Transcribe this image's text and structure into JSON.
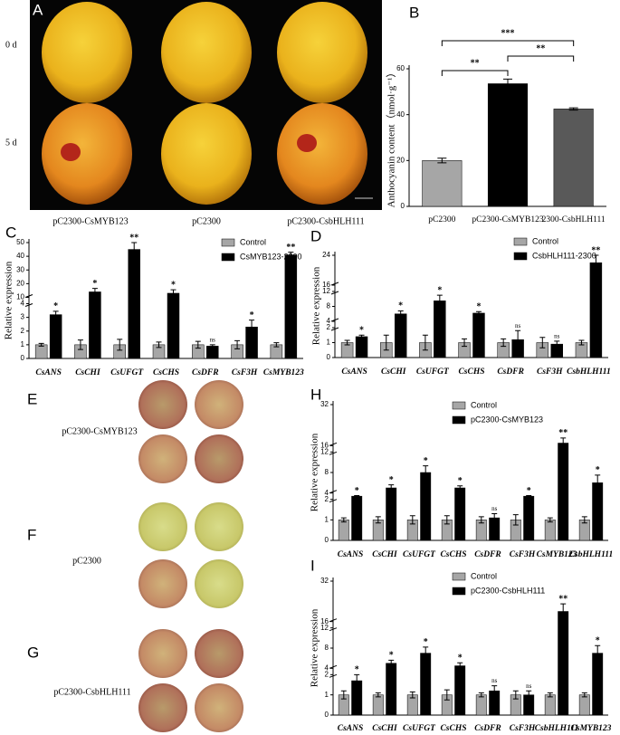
{
  "photos": {
    "panel_a": {
      "letter": "A",
      "rows": [
        "0 d",
        "5 d"
      ],
      "captions": [
        "pC2300-CsMYB123",
        "pC2300",
        "pC2300-CsbHLH111"
      ]
    },
    "leaf_panels": [
      {
        "letter": "E",
        "label": "pC2300-CsMYB123"
      },
      {
        "letter": "F",
        "label": "pC2300"
      },
      {
        "letter": "G",
        "label": "pC2300-CsbHLH111"
      }
    ]
  },
  "chart_data": [
    {
      "panel": "B",
      "type": "bar",
      "y_label": "Anthocyanin content（nmol·g⁻¹）",
      "categories": [
        "pC2300",
        "pC2300-CsMYB123",
        "2300-CsbHLH111"
      ],
      "values": [
        20,
        53.5,
        42.5
      ],
      "errors": [
        1,
        2,
        0.5
      ],
      "colors": [
        "#a6a6a6",
        "#000000",
        "#595959"
      ],
      "ylim": [
        0,
        60
      ],
      "yticks": [
        0,
        20,
        40,
        60
      ],
      "brackets": [
        {
          "from": 0,
          "to": 1,
          "label": "**"
        },
        {
          "from": 1,
          "to": 2,
          "label": "**"
        },
        {
          "from": 0,
          "to": 2,
          "label": "***"
        }
      ]
    },
    {
      "panel": "C",
      "type": "grouped_bar",
      "y_label": "Relative expression",
      "categories": [
        "CsANS",
        "CsCHI",
        "CsUFGT",
        "CsCHS",
        "CsDFR",
        "CsF3H",
        "CsMYB123"
      ],
      "ylim_segments": [
        [
          0,
          4
        ],
        [
          10,
          50
        ]
      ],
      "yticks": [
        0,
        1,
        2,
        3,
        4,
        10,
        20,
        30,
        40,
        50
      ],
      "series": [
        {
          "name": "Control",
          "color": "#a6a6a6",
          "values": [
            1,
            1,
            1,
            1,
            1,
            1,
            1
          ],
          "errors": [
            0.1,
            0.35,
            0.4,
            0.2,
            0.25,
            0.3,
            0.15
          ]
        },
        {
          "name": "CsMYB123-2300",
          "color": "#000000",
          "values": [
            3.2,
            14,
            45,
            13,
            0.9,
            2.3,
            41
          ],
          "errors": [
            0.25,
            2.5,
            5,
            2.5,
            0.1,
            0.5,
            2
          ],
          "significance": [
            "*",
            "*",
            "**",
            "*",
            "ns",
            "*",
            "**"
          ]
        }
      ]
    },
    {
      "panel": "D",
      "type": "grouped_bar",
      "y_label": "Relative expression",
      "categories": [
        "CsANS",
        "CsCHI",
        "CsUFGT",
        "CsCHS",
        "CsDFR",
        "CsF3H",
        "CsbHLH111"
      ],
      "ylim_segments": [
        [
          0,
          2
        ],
        [
          4,
          12
        ],
        [
          16,
          24
        ]
      ],
      "yticks": [
        0,
        1,
        2,
        4,
        8,
        12,
        16,
        24
      ],
      "series": [
        {
          "name": "Control",
          "color": "#a6a6a6",
          "values": [
            1,
            1,
            1,
            1,
            1,
            1,
            1
          ],
          "errors": [
            0.15,
            0.5,
            0.5,
            0.25,
            0.25,
            0.35,
            0.15
          ]
        },
        {
          "name": "CsbHLH111-2300",
          "color": "#000000",
          "values": [
            1.4,
            6,
            9.5,
            6.2,
            1.2,
            0.9,
            22
          ],
          "errors": [
            0.1,
            0.8,
            1.5,
            0.4,
            0.6,
            0.2,
            2
          ],
          "significance": [
            "*",
            "*",
            "*",
            "*",
            "ns",
            "ns",
            "**"
          ]
        }
      ]
    },
    {
      "panel": "H",
      "type": "grouped_bar",
      "y_label": "Relative expression",
      "categories": [
        "CsANS",
        "CsCHI",
        "CsUFGT",
        "CsCHS",
        "CsDFR",
        "CsF3H",
        "CsMYB123",
        "CsbHLH111"
      ],
      "ylim_segments": [
        [
          0,
          2
        ],
        [
          4,
          12
        ],
        [
          16,
          32
        ]
      ],
      "yticks": [
        0,
        1,
        2,
        4,
        8,
        12,
        16,
        32
      ],
      "series": [
        {
          "name": "Control",
          "color": "#a6a6a6",
          "values": [
            1,
            1,
            1,
            1,
            1,
            1,
            1,
            1
          ],
          "errors": [
            0.1,
            0.15,
            0.2,
            0.2,
            0.15,
            0.25,
            0.1,
            0.15
          ]
        },
        {
          "name": "pC2300-CsMYB123",
          "color": "#000000",
          "values": [
            3,
            5,
            8,
            5,
            1.1,
            3,
            17,
            6
          ],
          "errors": [
            0.2,
            0.6,
            1.3,
            0.4,
            0.2,
            0.2,
            2,
            1.5
          ],
          "significance": [
            "*",
            "*",
            "*",
            "*",
            "ns",
            "*",
            "**",
            "*"
          ]
        }
      ]
    },
    {
      "panel": "I",
      "type": "grouped_bar",
      "y_label": "Relative expression",
      "categories": [
        "CsANS",
        "CsCHI",
        "CsUFGT",
        "CsCHS",
        "CsDFR",
        "CsF3H",
        "CsbHLH111",
        "CsMYB123"
      ],
      "ylim_segments": [
        [
          0,
          2
        ],
        [
          4,
          12
        ],
        [
          16,
          32
        ]
      ],
      "yticks": [
        0,
        1,
        2,
        4,
        8,
        12,
        16,
        32
      ],
      "series": [
        {
          "name": "Control",
          "color": "#a6a6a6",
          "values": [
            1,
            1,
            1,
            1,
            1,
            1,
            1,
            1
          ],
          "errors": [
            0.2,
            0.1,
            0.15,
            0.25,
            0.1,
            0.2,
            0.1,
            0.1
          ]
        },
        {
          "name": "pC2300-CsbHLH111",
          "color": "#000000",
          "values": [
            1.7,
            5,
            7,
            4.5,
            1.2,
            1.0,
            20,
            7
          ],
          "errors": [
            0.3,
            0.6,
            1.2,
            0.6,
            0.25,
            0.2,
            3,
            1.5
          ],
          "significance": [
            "*",
            "*",
            "*",
            "*",
            "ns",
            "ns",
            "**",
            "*"
          ]
        }
      ]
    }
  ]
}
